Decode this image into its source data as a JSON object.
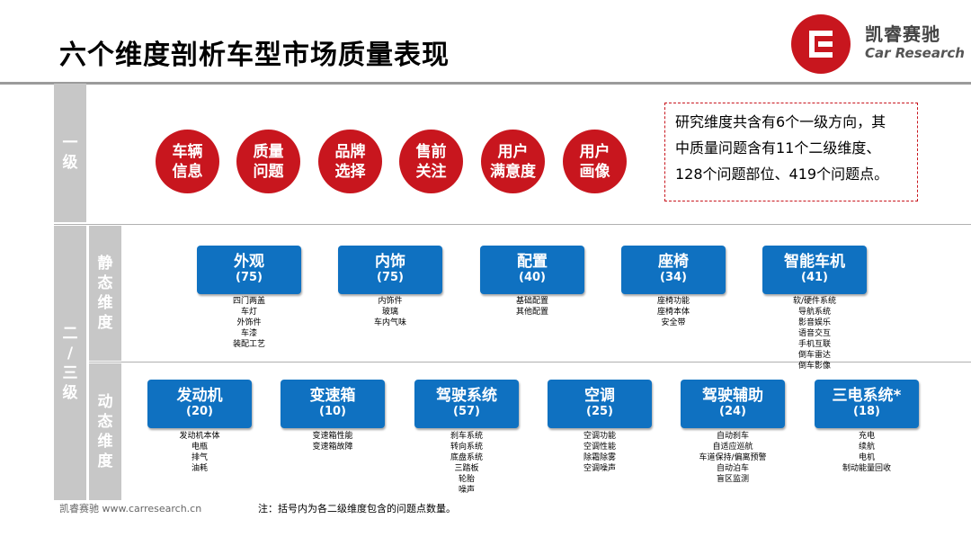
{
  "title": "六个维度剖析车型市场质量表现",
  "logo": {
    "name_cn": "凯睿赛驰",
    "name_en": "Car Research",
    "icon": "car-research-logo-icon",
    "color": "#c8161e"
  },
  "side_labels": {
    "level1": [
      "一",
      "级"
    ],
    "level23": [
      "二",
      "/",
      "三",
      "级"
    ],
    "static": [
      "静",
      "态",
      "维",
      "度"
    ],
    "dynamic": [
      "动",
      "态",
      "维",
      "度"
    ]
  },
  "level1_dimensions": [
    {
      "lines": [
        "车辆",
        "信息"
      ]
    },
    {
      "lines": [
        "质量",
        "问题"
      ]
    },
    {
      "lines": [
        "品牌",
        "选择"
      ]
    },
    {
      "lines": [
        "售前",
        "关注"
      ]
    },
    {
      "lines": [
        "用户",
        "满意度"
      ]
    },
    {
      "lines": [
        "用户",
        "画像"
      ]
    }
  ],
  "note": {
    "lines": [
      "研究维度共含有6个一级方向，其",
      "中质量问题含有11个二级维度、",
      "128个问题部位、419个问题点。"
    ]
  },
  "static_dimensions": [
    {
      "name": "外观",
      "count": "(75)",
      "items": [
        "四门两盖",
        "车灯",
        "外饰件",
        "车漆",
        "装配工艺"
      ]
    },
    {
      "name": "内饰",
      "count": "(75)",
      "items": [
        "内饰件",
        "玻璃",
        "车内气味"
      ]
    },
    {
      "name": "配置",
      "count": "(40)",
      "items": [
        "基础配置",
        "其他配置"
      ]
    },
    {
      "name": "座椅",
      "count": "(34)",
      "items": [
        "座椅功能",
        "座椅本体",
        "安全带"
      ]
    },
    {
      "name": "智能车机",
      "count": "(41)",
      "items": [
        "软/硬件系统",
        "导航系统",
        "影音娱乐",
        "语音交互",
        "手机互联",
        "倒车雷达",
        "倒车影像"
      ]
    }
  ],
  "dynamic_dimensions": [
    {
      "name": "发动机",
      "count": "(20)",
      "items": [
        "发动机本体",
        "电瓶",
        "排气",
        "油耗"
      ]
    },
    {
      "name": "变速箱",
      "count": "(10)",
      "items": [
        "变速箱性能",
        "变速箱故障"
      ]
    },
    {
      "name": "驾驶系统",
      "count": "(57)",
      "items": [
        "刹车系统",
        "转向系统",
        "底盘系统",
        "三踏板",
        "轮胎",
        "噪声"
      ]
    },
    {
      "name": "空调",
      "count": "(25)",
      "items": [
        "空调功能",
        "空调性能",
        "除霜除雾",
        "空调噪声"
      ]
    },
    {
      "name": "驾驶辅助",
      "count": "(24)",
      "items": [
        "自动刹车",
        "自适应巡航",
        "车道保持/偏离预警",
        "自动泊车",
        "盲区监测"
      ]
    },
    {
      "name": "三电系统*",
      "count": "(18)",
      "items": [
        "充电",
        "续航",
        "电机",
        "制动能量回收"
      ]
    }
  ],
  "footer": {
    "source": "凯睿赛驰 www.carresearch.cn",
    "note": "注：括号内为各二级维度包含的问题点数量。"
  }
}
